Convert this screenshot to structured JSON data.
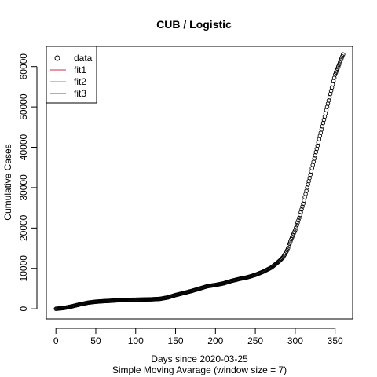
{
  "chart_data": {
    "type": "scatter",
    "title": "CUB / Logistic",
    "xlabel": "Days since 2020-03-25",
    "subtitle": "Simple Moving Avarage (window size = 7)",
    "ylabel": "Cumulative Cases",
    "xlim": [
      -12,
      372
    ],
    "ylim": [
      -2500,
      65000
    ],
    "xticks": [
      0,
      50,
      100,
      150,
      200,
      250,
      300,
      350
    ],
    "yticks": [
      0,
      10000,
      20000,
      30000,
      40000,
      50000,
      60000
    ],
    "grid": false,
    "legend": {
      "position": "top-left",
      "entries": [
        {
          "label": "data",
          "symbol": "circle",
          "color": "#000000"
        },
        {
          "label": "fit1",
          "symbol": "line",
          "color": "#df536b"
        },
        {
          "label": "fit2",
          "symbol": "line",
          "color": "#61d04f"
        },
        {
          "label": "fit3",
          "symbol": "line",
          "color": "#2297e6"
        }
      ]
    },
    "series": [
      {
        "name": "data",
        "marker": "open-circle",
        "color": "#000000",
        "x": [
          0,
          10,
          20,
          30,
          40,
          50,
          60,
          70,
          80,
          90,
          100,
          110,
          120,
          130,
          140,
          150,
          160,
          170,
          180,
          190,
          200,
          210,
          220,
          230,
          240,
          250,
          260,
          270,
          280,
          285,
          290,
          295,
          300,
          305,
          310,
          315,
          320,
          325,
          330,
          335,
          340,
          345,
          350,
          355,
          360
        ],
        "y": [
          0,
          200,
          600,
          1100,
          1500,
          1750,
          1900,
          2000,
          2150,
          2200,
          2250,
          2300,
          2350,
          2450,
          2800,
          3400,
          3900,
          4400,
          5000,
          5600,
          5900,
          6300,
          6900,
          7400,
          7800,
          8400,
          9200,
          10200,
          11800,
          12800,
          14500,
          17200,
          19500,
          22500,
          26000,
          30000,
          34000,
          38000,
          42000,
          46000,
          50000,
          54000,
          58000,
          60500,
          63000
        ]
      }
    ]
  }
}
